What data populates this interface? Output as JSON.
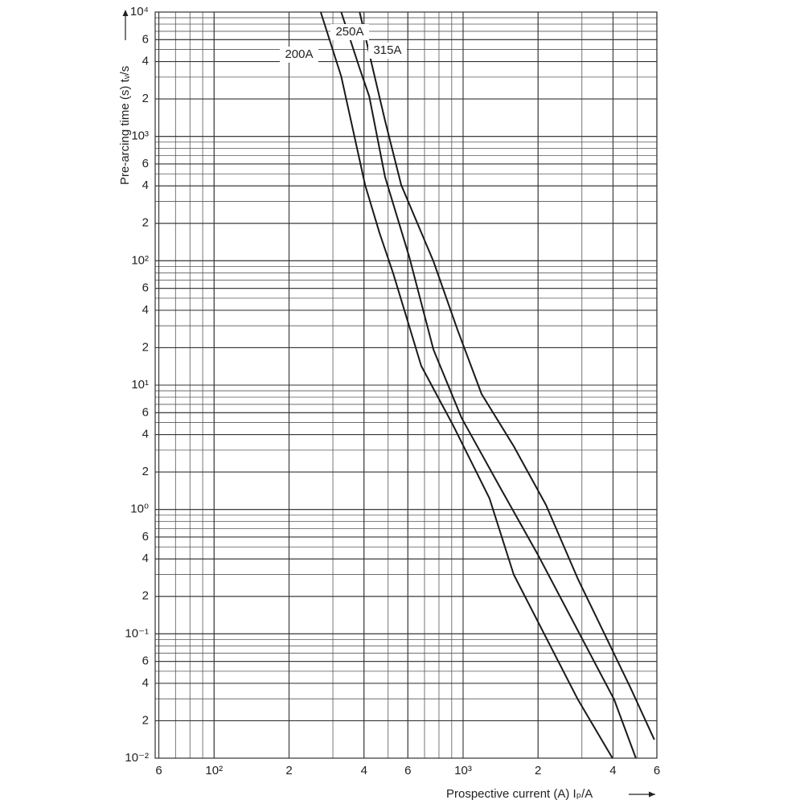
{
  "chart_data": {
    "type": "line",
    "x_label": "Prospective current (A) Iₚ/A",
    "y_label": "Pre-arcing time (s) tᵥ/s",
    "x_log": true,
    "y_log": true,
    "grid": true,
    "xlim": [
      58,
      6000
    ],
    "ylim": [
      0.01,
      10000
    ],
    "xticks": [
      {
        "value": 60,
        "label": "6"
      },
      {
        "value": 100,
        "label": "10²"
      },
      {
        "value": 200,
        "label": "2"
      },
      {
        "value": 400,
        "label": "4"
      },
      {
        "value": 600,
        "label": "6"
      },
      {
        "value": 1000,
        "label": "10³"
      },
      {
        "value": 2000,
        "label": "2"
      },
      {
        "value": 4000,
        "label": "4"
      },
      {
        "value": 6000,
        "label": "6"
      }
    ],
    "yticks": [
      {
        "value": 10000,
        "label": "10⁴"
      },
      {
        "value": 6000,
        "label": "6"
      },
      {
        "value": 4000,
        "label": "4"
      },
      {
        "value": 2000,
        "label": "2"
      },
      {
        "value": 1000,
        "label": "10³"
      },
      {
        "value": 600,
        "label": "6"
      },
      {
        "value": 400,
        "label": "4"
      },
      {
        "value": 200,
        "label": "2"
      },
      {
        "value": 100,
        "label": "10²"
      },
      {
        "value": 60,
        "label": "6"
      },
      {
        "value": 40,
        "label": "4"
      },
      {
        "value": 20,
        "label": "2"
      },
      {
        "value": 10,
        "label": "10¹"
      },
      6,
      4,
      2,
      {
        "value": 1,
        "label": "10⁰"
      },
      {
        "value": 0.6,
        "label": "6"
      },
      {
        "value": 0.4,
        "label": "4"
      },
      {
        "value": 0.2,
        "label": "2"
      },
      {
        "value": 0.1,
        "label": "10⁻¹"
      },
      {
        "value": 0.06,
        "label": "6"
      },
      {
        "value": 0.04,
        "label": "4"
      },
      {
        "value": 0.02,
        "label": "2"
      },
      {
        "value": 0.01,
        "label": "10⁻²"
      }
    ],
    "series": [
      {
        "name": "200A",
        "color": "#1a1a1a",
        "x": [
          268,
          324,
          404,
          462,
          524,
          679,
          914,
          1276,
          1596,
          2890,
          3980
        ],
        "values": [
          10000,
          3040,
          407,
          167,
          79,
          14.3,
          4.7,
          1.23,
          0.3,
          0.0297,
          0.01
        ]
      },
      {
        "name": "250A",
        "color": "#1a1a1a",
        "x": [
          324,
          384,
          420,
          486,
          608,
          760,
          986,
          1428,
          1995,
          4040,
          4940
        ],
        "values": [
          10000,
          3530,
          2095,
          473,
          107,
          19.3,
          5.45,
          1.43,
          0.434,
          0.0297,
          0.01
        ]
      },
      {
        "name": "315A",
        "color": "#1a1a1a",
        "x": [
          384,
          445,
          486,
          564,
          760,
          949,
          1186,
          1596,
          2150,
          2890,
          4690,
          5860
        ],
        "values": [
          10000,
          2825,
          1340,
          407,
          99,
          28,
          8.5,
          3.23,
          1.09,
          0.277,
          0.0372,
          0.0141
        ]
      }
    ]
  }
}
